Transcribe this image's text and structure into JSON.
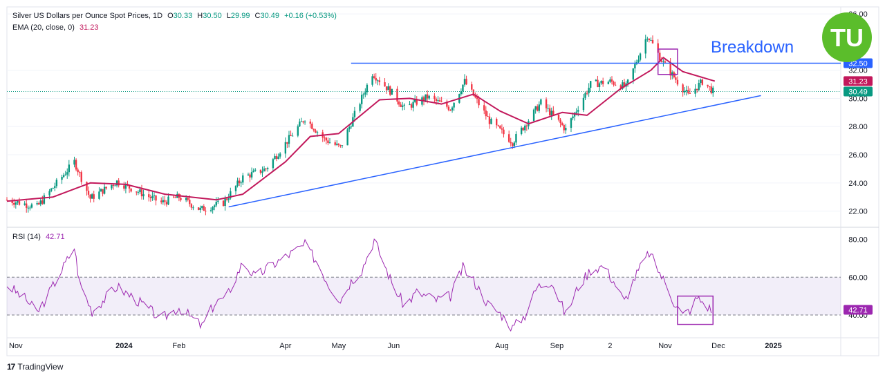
{
  "header": {
    "title": "Silver US Dollars per Ounce Spot Prices, 1D",
    "o_label": "O",
    "o": "30.33",
    "h_label": "H",
    "h": "30.50",
    "l_label": "L",
    "l": "29.99",
    "c_label": "C",
    "c": "30.49",
    "change": "+0.16 (+0.53%)",
    "ema_label": "EMA (20, close, 0)",
    "ema_value": "31.23",
    "rsi_label": "RSI (14)",
    "rsi_value": "42.71"
  },
  "annotation": {
    "text": "Breakdown"
  },
  "logo_badge": "TU",
  "footer": {
    "brand": "TradingView",
    "brand_glyph": "17"
  },
  "colors": {
    "up": "#089981",
    "down": "#f23645",
    "ema": "#c2185b",
    "trendline": "#2962ff",
    "rsi": "#9c27b0",
    "rsi_band": "#7e57c2",
    "annot": "#2962ff",
    "logo": "#5bbd2b"
  },
  "chart_data": [
    {
      "type": "candlestick",
      "title": "Silver US Dollars per Ounce Spot Prices, 1D",
      "ylim": [
        21,
        36.2
      ],
      "yticks": [
        "36.00",
        "32.00",
        "30.00",
        "28.00",
        "26.00",
        "24.00",
        "22.00"
      ],
      "ytick_values": [
        36,
        32,
        30,
        28,
        26,
        24,
        22
      ],
      "xticks": [
        "Nov",
        "2024",
        "Feb",
        "Apr",
        "May",
        "Jun",
        "Aug",
        "Sep",
        "2",
        "Nov",
        "Dec",
        "2025"
      ],
      "xtick_dates": [
        "2023-11-01",
        "2024-01-01",
        "2024-02-01",
        "2024-04-01",
        "2024-05-01",
        "2024-06-01",
        "2024-08-01",
        "2024-09-01",
        "2024-10-01",
        "2024-11-01",
        "2024-12-01",
        "2025-01-01"
      ],
      "x_range": [
        "2023-10-27",
        "2025-02-08"
      ],
      "price_path": [
        [
          "2023-10-27",
          22.8
        ],
        [
          "2023-11-13",
          22.3
        ],
        [
          "2023-12-04",
          25.5
        ],
        [
          "2023-12-13",
          22.9
        ],
        [
          "2023-12-28",
          24.1
        ],
        [
          "2024-01-22",
          22.6
        ],
        [
          "2024-02-01",
          23.0
        ],
        [
          "2024-02-13",
          22.1
        ],
        [
          "2024-02-26",
          22.6
        ],
        [
          "2024-03-08",
          24.4
        ],
        [
          "2024-03-21",
          25.0
        ],
        [
          "2024-04-12",
          28.6
        ],
        [
          "2024-04-23",
          27.1
        ],
        [
          "2024-05-02",
          26.5
        ],
        [
          "2024-05-20",
          31.8
        ],
        [
          "2024-05-31",
          30.4
        ],
        [
          "2024-06-07",
          29.3
        ],
        [
          "2024-06-20",
          30.1
        ],
        [
          "2024-07-03",
          29.3
        ],
        [
          "2024-07-11",
          31.2
        ],
        [
          "2024-07-25",
          28.4
        ],
        [
          "2024-08-07",
          26.9
        ],
        [
          "2024-08-23",
          29.7
        ],
        [
          "2024-09-06",
          27.8
        ],
        [
          "2024-09-20",
          31.0
        ],
        [
          "2024-10-01",
          31.2
        ],
        [
          "2024-10-10",
          30.8
        ],
        [
          "2024-10-22",
          34.5
        ],
        [
          "2024-10-31",
          32.5
        ],
        [
          "2024-11-14",
          30.2
        ],
        [
          "2024-11-22",
          31.2
        ],
        [
          "2024-11-28",
          30.5
        ]
      ],
      "ema20_path": [
        [
          "2023-10-27",
          22.7
        ],
        [
          "2023-11-22",
          23.0
        ],
        [
          "2023-12-13",
          24.0
        ],
        [
          "2024-01-02",
          23.9
        ],
        [
          "2024-01-24",
          23.2
        ],
        [
          "2024-02-22",
          22.8
        ],
        [
          "2024-03-08",
          23.2
        ],
        [
          "2024-04-01",
          25.5
        ],
        [
          "2024-04-15",
          27.3
        ],
        [
          "2024-05-01",
          27.5
        ],
        [
          "2024-05-24",
          29.9
        ],
        [
          "2024-06-10",
          30.0
        ],
        [
          "2024-06-28",
          29.6
        ],
        [
          "2024-07-16",
          30.3
        ],
        [
          "2024-07-31",
          29.1
        ],
        [
          "2024-08-16",
          28.2
        ],
        [
          "2024-09-04",
          29.0
        ],
        [
          "2024-09-18",
          28.8
        ],
        [
          "2024-10-07",
          30.7
        ],
        [
          "2024-10-24",
          32.0
        ],
        [
          "2024-10-31",
          32.9
        ],
        [
          "2024-11-11",
          31.9
        ],
        [
          "2024-11-29",
          31.23
        ]
      ],
      "horizontal_level": {
        "value": 32.5,
        "label": "32.50",
        "from": "2024-05-08",
        "to": "2025-02-08"
      },
      "trendline": {
        "from": [
          "2024-02-29",
          22.3
        ],
        "to": [
          "2024-12-25",
          30.2
        ]
      },
      "breakdown_box": {
        "from": "2024-10-28",
        "to": "2024-11-08",
        "y_top": 33.5,
        "y_bottom": 31.7
      },
      "price_labels": [
        {
          "label": "31.23",
          "value": 31.23,
          "color": "#c2185b"
        },
        {
          "label": "30.49",
          "value": 30.49,
          "color": "#089981"
        }
      ]
    },
    {
      "type": "line",
      "title": "RSI (14)",
      "ylim": [
        29,
        85
      ],
      "yticks": [
        "80.00",
        "60.00",
        "40.00"
      ],
      "ytick_values": [
        80,
        60,
        40
      ],
      "band": [
        40,
        60
      ],
      "series": [
        {
          "name": "RSI (14)",
          "points": [
            [
              "2023-10-27",
              56
            ],
            [
              "2023-11-07",
              48
            ],
            [
              "2023-11-13",
              41
            ],
            [
              "2023-11-20",
              52
            ],
            [
              "2023-12-04",
              76
            ],
            [
              "2023-12-07",
              57
            ],
            [
              "2023-12-14",
              42
            ],
            [
              "2023-12-28",
              55
            ],
            [
              "2024-01-08",
              48
            ],
            [
              "2024-01-22",
              38
            ],
            [
              "2024-02-01",
              44
            ],
            [
              "2024-02-14",
              34
            ],
            [
              "2024-02-21",
              46
            ],
            [
              "2024-02-28",
              50
            ],
            [
              "2024-03-08",
              68
            ],
            [
              "2024-03-15",
              60
            ],
            [
              "2024-03-22",
              65
            ],
            [
              "2024-04-03",
              72
            ],
            [
              "2024-04-12",
              77
            ],
            [
              "2024-04-19",
              68
            ],
            [
              "2024-04-26",
              55
            ],
            [
              "2024-05-02",
              48
            ],
            [
              "2024-05-08",
              58
            ],
            [
              "2024-05-14",
              64
            ],
            [
              "2024-05-21",
              80
            ],
            [
              "2024-05-31",
              57
            ],
            [
              "2024-06-07",
              45
            ],
            [
              "2024-06-14",
              52
            ],
            [
              "2024-06-25",
              48
            ],
            [
              "2024-07-03",
              50
            ],
            [
              "2024-07-10",
              65
            ],
            [
              "2024-07-17",
              57
            ],
            [
              "2024-07-24",
              46
            ],
            [
              "2024-08-01",
              40
            ],
            [
              "2024-08-07",
              33
            ],
            [
              "2024-08-14",
              40
            ],
            [
              "2024-08-21",
              55
            ],
            [
              "2024-08-29",
              58
            ],
            [
              "2024-09-06",
              40
            ],
            [
              "2024-09-13",
              55
            ],
            [
              "2024-09-20",
              64
            ],
            [
              "2024-09-27",
              66
            ],
            [
              "2024-10-03",
              58
            ],
            [
              "2024-10-09",
              47
            ],
            [
              "2024-10-15",
              60
            ],
            [
              "2024-10-23",
              73
            ],
            [
              "2024-10-28",
              64
            ],
            [
              "2024-11-01",
              57
            ],
            [
              "2024-11-06",
              47
            ],
            [
              "2024-11-11",
              40
            ],
            [
              "2024-11-15",
              43
            ],
            [
              "2024-11-19",
              49
            ],
            [
              "2024-11-22",
              47
            ],
            [
              "2024-11-27",
              42.71
            ]
          ]
        }
      ],
      "box": {
        "from": "2024-11-08",
        "to": "2024-11-28",
        "y_top": 50,
        "y_bottom": 35
      },
      "value_label": {
        "label": "42.71",
        "value": 42.71,
        "color": "#9c27b0"
      }
    }
  ]
}
